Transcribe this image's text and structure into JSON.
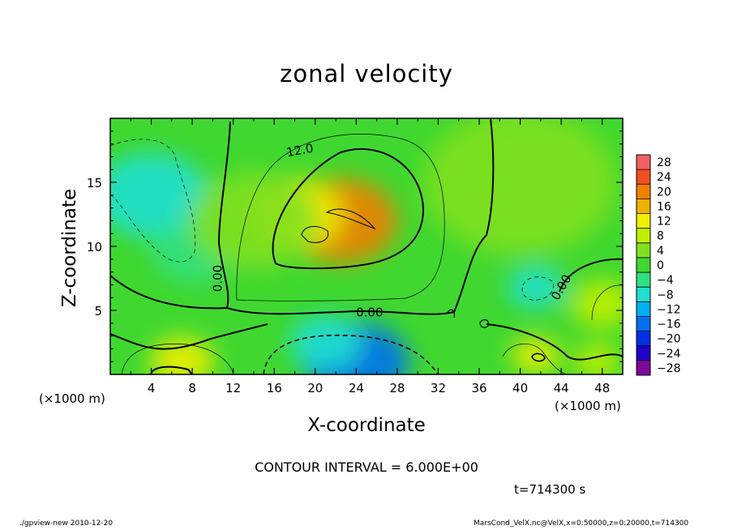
{
  "chart_data": {
    "type": "heatmap",
    "title": "zonal velocity",
    "xlabel": "X-coordinate",
    "ylabel": "Z-coordinate",
    "x_unit_label": "(×1000 m)",
    "x_ticks": [
      "4",
      "8",
      "12",
      "16",
      "20",
      "24",
      "28",
      "32",
      "36",
      "40",
      "44",
      "48"
    ],
    "y_ticks": [
      "5",
      "10",
      "15"
    ],
    "xlim": [
      0,
      50
    ],
    "ylim": [
      0,
      20
    ],
    "colorbar_ticks": [
      "28",
      "24",
      "20",
      "16",
      "12",
      "8",
      "4",
      "0",
      "−4",
      "−8",
      "−12",
      "−16",
      "−20",
      "−24",
      "−28"
    ],
    "contour_labels": [
      "12.0",
      "0.00",
      "0.00",
      "0.00"
    ],
    "contour_interval": "CONTOUR INTERVAL = 6.000E+00",
    "time_label": "t=714300  s",
    "grid": false,
    "features": [
      {
        "x": 22.5,
        "y": 12.0,
        "value": 21
      },
      {
        "x": 18.0,
        "y": 12.5,
        "value": 12
      },
      {
        "x": 24.0,
        "y": 1.0,
        "value": -17
      },
      {
        "x": 21.0,
        "y": 2.5,
        "value": -10
      },
      {
        "x": 4.0,
        "y": 14.0,
        "value": -7
      },
      {
        "x": 8.0,
        "y": 9.5,
        "value": -4
      },
      {
        "x": 41.5,
        "y": 6.8,
        "value": -8
      },
      {
        "x": 48.0,
        "y": 5.5,
        "value": 8
      },
      {
        "x": 7.0,
        "y": 1.0,
        "value": 12
      },
      {
        "x": 41.5,
        "y": 1.5,
        "value": 10
      },
      {
        "x": 47.5,
        "y": 1.0,
        "value": 9
      },
      {
        "x": 40.0,
        "y": 15.0,
        "value": 2
      },
      {
        "x": 14.0,
        "y": 12.0,
        "value": 3
      }
    ]
  },
  "footer": {
    "left": "./gpview-new   2010-12-20",
    "right": "MarsCond_VelX.nc@VelX,x=0:50000,z=0:20000,t=714300"
  },
  "colors": [
    "#7b0a9a",
    "#2100c8",
    "#0030e6",
    "#0070f0",
    "#00b0f0",
    "#20e0d0",
    "#30e080",
    "#40d830",
    "#80e020",
    "#c0f000",
    "#f0f000",
    "#f0b000",
    "#f08000",
    "#f05020",
    "#f06060"
  ]
}
